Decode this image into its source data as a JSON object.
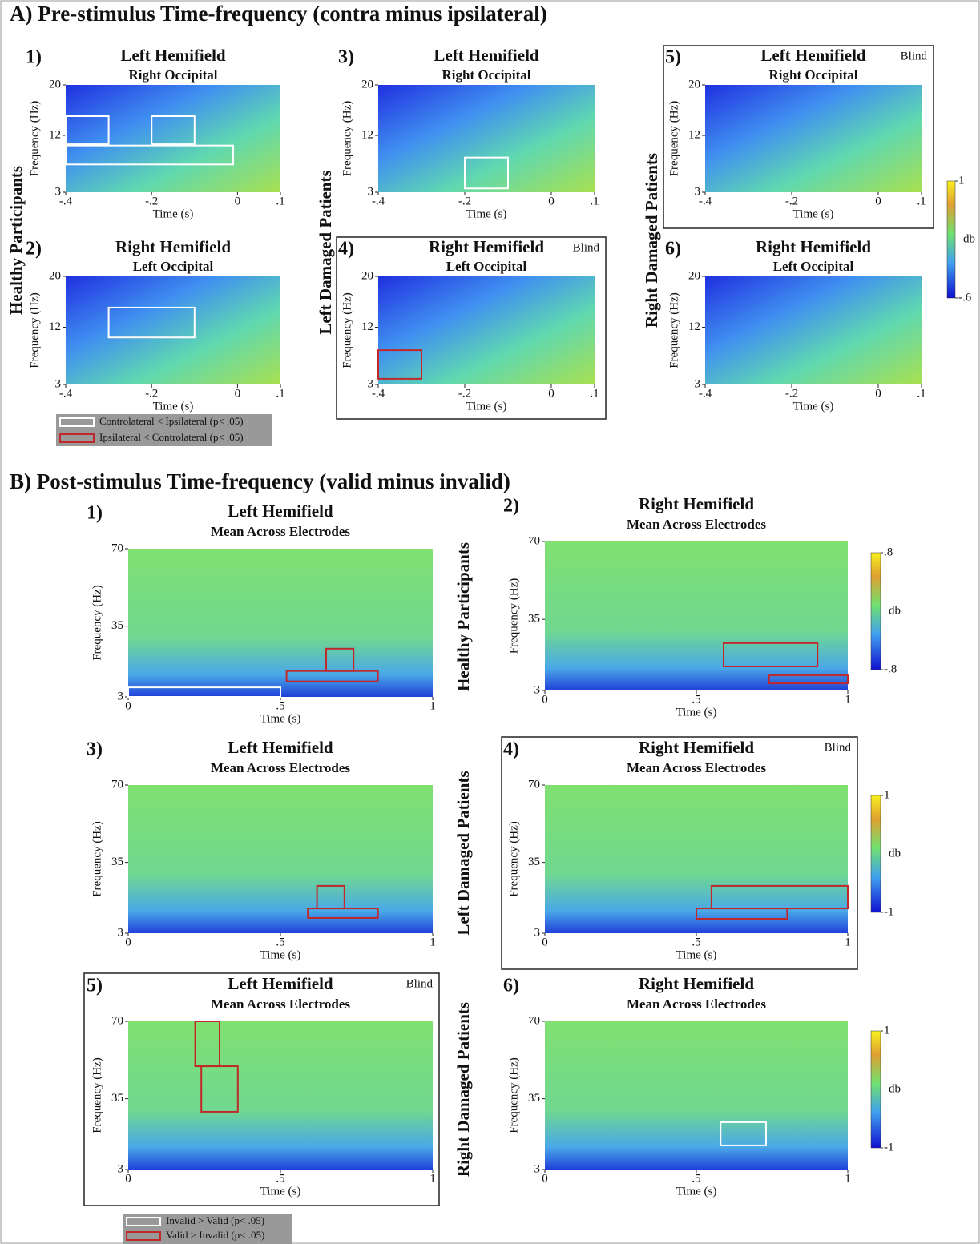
{
  "sections": [
    {
      "heading": "A) Pre-stimulus Time-frequency (contra minus ipsilateral)",
      "xlabel": "Time (s)",
      "ylabel": "Frequency (Hz)",
      "xlim": [
        -0.4,
        0.1
      ],
      "ylim": [
        3,
        20
      ],
      "xticks": [
        {
          "value": -0.4,
          "label": "-.4"
        },
        {
          "value": -0.2,
          "label": "-.2"
        },
        0,
        {
          "value": 0.1,
          "label": ".1"
        }
      ],
      "yticks": [
        3,
        12,
        20
      ],
      "groups": [
        "Healthy Participants",
        "Left Damaged Patients",
        "Right Damaged Patients"
      ],
      "panels": [
        {
          "number": "1)",
          "title": "Left Hemifield",
          "subtitle": "Right Occipital",
          "boxes": [
            {
              "t": [
                -0.4,
                -0.3
              ],
              "f": [
                10.6,
                15.05
              ],
              "color": "#ffffff"
            },
            {
              "t": [
                -0.2,
                -0.1
              ],
              "f": [
                10.6,
                15.05
              ],
              "color": "#ffffff"
            },
            {
              "t": [
                -0.4,
                -0.01
              ],
              "f": [
                7.4,
                10.4
              ],
              "color": "#ffffff"
            }
          ]
        },
        {
          "number": "2)",
          "title": "Right Hemifield",
          "subtitle": "Left Occipital",
          "boxes": [
            {
              "t": [
                -0.3,
                -0.1
              ],
              "f": [
                10.4,
                15.1
              ],
              "color": "#ffffff"
            }
          ]
        },
        {
          "number": "3)",
          "title": "Left Hemifield",
          "subtitle": "Right Occipital",
          "boxes": [
            {
              "t": [
                -0.2,
                -0.1
              ],
              "f": [
                3.6,
                8.5
              ],
              "color": "#ffffff"
            }
          ]
        },
        {
          "number": "4)",
          "title": "Right Hemifield",
          "subtitle": "Left Occipital",
          "blind": "Blind",
          "boxes": [
            {
              "t": [
                -0.4,
                -0.3
              ],
              "f": [
                3.9,
                8.4
              ],
              "color": "#c0282a"
            }
          ]
        },
        {
          "number": "5)",
          "title": "Left Hemifield",
          "subtitle": "Right Occipital",
          "blind": "Blind",
          "boxes": []
        },
        {
          "number": "6)",
          "title": "Right Hemifield",
          "subtitle": "Left Occipital",
          "boxes": []
        }
      ],
      "colorbars": [
        {
          "label": "db",
          "lim": [
            -0.6,
            1
          ],
          "ticks": [
            1,
            {
              "value": -0.6,
              "label": "-.6"
            }
          ]
        }
      ],
      "legend": [
        {
          "label": "Controlateral < Ipsilateral (p< .05)",
          "color": "#ffffff"
        },
        {
          "label": "Ipsilateral < Controlateral (p< .05)",
          "color": "#c0282a"
        }
      ]
    },
    {
      "heading": "B) Post-stimulus Time-frequency (valid minus invalid)",
      "xlabel": "Time (s)",
      "ylabel": "Frequency (Hz)",
      "xlim": [
        0,
        1
      ],
      "ylim": [
        3,
        70
      ],
      "xticks": [
        0,
        {
          "value": 0.5,
          "label": ".5"
        },
        1
      ],
      "yticks": [
        3,
        35,
        70
      ],
      "groups": [
        "Healthy Participants",
        "Left Damaged Patients",
        "Right Damaged Patients"
      ],
      "panels": [
        {
          "number": "1)",
          "title": "Left Hemifield",
          "subtitle": "Mean Across Electrodes",
          "boxes": [
            {
              "t": [
                0,
                0.5
              ],
              "f": [
                3,
                7.3
              ],
              "color": "#ffffff"
            },
            {
              "t": [
                0.52,
                0.82
              ],
              "f": [
                10,
                14.7
              ],
              "color": "#c0282a"
            },
            {
              "t": [
                0.65,
                0.74
              ],
              "f": [
                14.7,
                24.8
              ],
              "color": "#c0282a"
            }
          ]
        },
        {
          "number": "2)",
          "title": "Right Hemifield",
          "subtitle": "Mean Across Electrodes",
          "boxes": [
            {
              "t": [
                0.59,
                0.9
              ],
              "f": [
                13.8,
                24.3
              ],
              "color": "#c0282a"
            },
            {
              "t": [
                0.74,
                1
              ],
              "f": [
                6.2,
                9.8
              ],
              "color": "#c0282a"
            }
          ]
        },
        {
          "number": "3)",
          "title": "Left Hemifield",
          "subtitle": "Mean Across Electrodes",
          "boxes": [
            {
              "t": [
                0.59,
                0.82
              ],
              "f": [
                9.9,
                14.2
              ],
              "color": "#c0282a"
            },
            {
              "t": [
                0.62,
                0.71
              ],
              "f": [
                14.2,
                24.4
              ],
              "color": "#c0282a"
            }
          ]
        },
        {
          "number": "4)",
          "title": "Right Hemifield",
          "subtitle": "Mean Across Electrodes",
          "blind": "Blind",
          "boxes": [
            {
              "t": [
                0.5,
                0.8
              ],
              "f": [
                9.5,
                14.2
              ],
              "color": "#c0282a"
            },
            {
              "t": [
                0.55,
                1
              ],
              "f": [
                14.2,
                24.4
              ],
              "color": "#c0282a"
            }
          ]
        },
        {
          "number": "5)",
          "title": "Left Hemifield",
          "subtitle": "Mean Across Electrodes",
          "blind": "Blind",
          "boxes": [
            {
              "t": [
                0.22,
                0.3
              ],
              "f": [
                49.7,
                70
              ],
              "color": "#c0282a"
            },
            {
              "t": [
                0.24,
                0.36
              ],
              "f": [
                29.1,
                49.7
              ],
              "color": "#c0282a"
            }
          ]
        },
        {
          "number": "6)",
          "title": "Right Hemifield",
          "subtitle": "Mean Across Electrodes",
          "boxes": [
            {
              "t": [
                0.58,
                0.73
              ],
              "f": [
                13.9,
                24.4
              ],
              "color": "#ffffff"
            }
          ]
        }
      ],
      "colorbars": [
        {
          "label": "db",
          "lim": [
            -0.8,
            0.8
          ],
          "ticks": [
            {
              "value": 0.8,
              "label": ".8"
            },
            {
              "value": -0.8,
              "label": "-.8"
            }
          ]
        },
        {
          "label": "db",
          "lim": [
            -1,
            1
          ],
          "ticks": [
            1,
            -1
          ]
        },
        {
          "label": "db",
          "lim": [
            -1,
            1
          ],
          "ticks": [
            1,
            -1
          ]
        }
      ],
      "legend": [
        {
          "label": "Invalid > Valid (p< .05)",
          "color": "#ffffff"
        },
        {
          "label": "Valid > Invalid (p< .05)",
          "color": "#c0282a"
        }
      ]
    }
  ]
}
